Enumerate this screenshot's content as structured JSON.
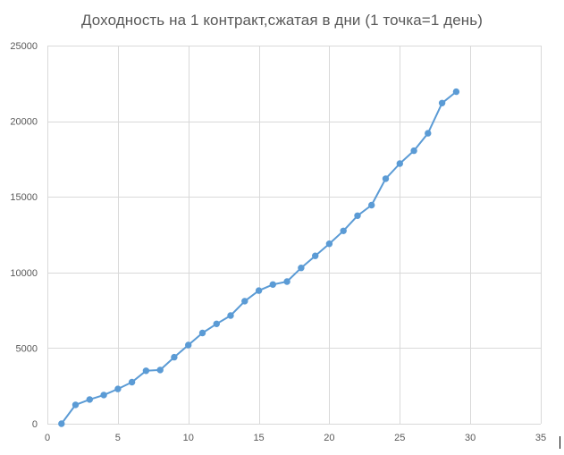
{
  "chart_data": {
    "type": "line",
    "title": "Доходность на 1 контракт,сжатая в дни (1 точка=1 день)",
    "xlabel": "",
    "ylabel": "",
    "xlim": [
      0,
      35
    ],
    "ylim": [
      0,
      25000
    ],
    "x_ticks": [
      0,
      5,
      10,
      15,
      20,
      25,
      30,
      35
    ],
    "y_ticks": [
      0,
      5000,
      10000,
      15000,
      20000,
      25000
    ],
    "grid": true,
    "legend": "none",
    "series": [
      {
        "color": "#5B9BD5",
        "marker": "circle",
        "points": [
          [
            1,
            0
          ],
          [
            2,
            1250
          ],
          [
            3,
            1600
          ],
          [
            4,
            1900
          ],
          [
            5,
            2300
          ],
          [
            6,
            2750
          ],
          [
            7,
            3500
          ],
          [
            8,
            3550
          ],
          [
            9,
            4400
          ],
          [
            10,
            5200
          ],
          [
            11,
            6000
          ],
          [
            12,
            6600
          ],
          [
            13,
            7150
          ],
          [
            14,
            8100
          ],
          [
            15,
            8800
          ],
          [
            16,
            9200
          ],
          [
            17,
            9400
          ],
          [
            18,
            10300
          ],
          [
            19,
            11100
          ],
          [
            20,
            11900
          ],
          [
            21,
            12750
          ],
          [
            22,
            13750
          ],
          [
            23,
            14450
          ],
          [
            24,
            16200
          ],
          [
            25,
            17200
          ],
          [
            26,
            18050
          ],
          [
            27,
            19200
          ],
          [
            28,
            21200
          ],
          [
            29,
            21950
          ]
        ]
      }
    ]
  },
  "colors": {
    "gridline": "#D9D9D9",
    "axis_text": "#595959",
    "series": "#5B9BD5"
  }
}
